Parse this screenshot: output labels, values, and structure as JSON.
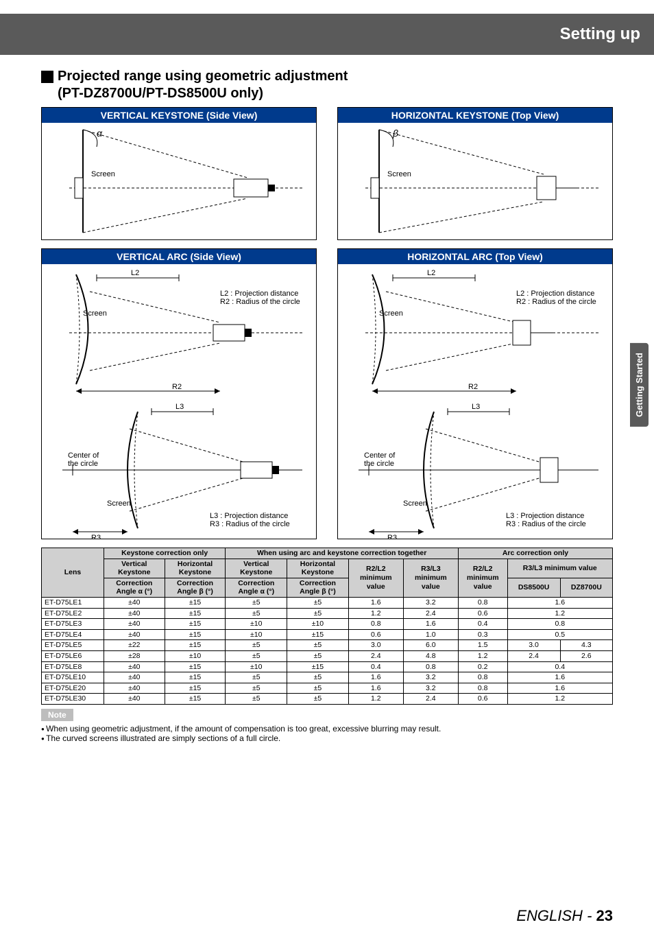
{
  "header": {
    "title": "Setting up"
  },
  "section": {
    "heading": "Projected range using geometric adjustment",
    "sub": "(PT-DZ8700U/PT-DS8500U only)"
  },
  "sidetab": "Getting Started",
  "diagrams": {
    "vk_title": "VERTICAL KEYSTONE (Side View)",
    "hk_title": "HORIZONTAL KEYSTONE (Top View)",
    "va_title": "VERTICAL ARC (Side View)",
    "ha_title": "HORIZONTAL ARC (Top View)",
    "screen": "Screen",
    "alpha": "α",
    "beta": "β",
    "L2": "L2",
    "R2": "R2",
    "L3": "L3",
    "R3": "R3",
    "center": "Center of\nthe circle",
    "l2_note": "L2 : Projection distance\nR2 : Radius of the circle",
    "l3_note": "L3 : Projection distance\nR3 : Radius of the circle"
  },
  "table": {
    "headers": {
      "lens": "Lens",
      "kco": "Keystone correction only",
      "arc_key": "When using arc and keystone correction together",
      "aco": "Arc correction only",
      "vk": "Vertical\nKeystone",
      "hk": "Horizontal\nKeystone",
      "ca": "Correction\nAngle α (°)",
      "cb": "Correction\nAngle β (°)",
      "r2l2": "R2/L2\nminimum\nvalue",
      "r3l3": "R3/L3\nminimum\nvalue",
      "r3l3min": "R3/L3 minimum value",
      "ds": "DS8500U",
      "dz": "DZ8700U"
    },
    "rows": [
      {
        "lens": "ET-D75LE1",
        "a": "±40",
        "b": "±15",
        "a2": "±5",
        "b2": "±5",
        "r2": "1.6",
        "r3": "3.2",
        "r2b": "0.8",
        "v": "1.6",
        "span": true
      },
      {
        "lens": "ET-D75LE2",
        "a": "±40",
        "b": "±15",
        "a2": "±5",
        "b2": "±5",
        "r2": "1.2",
        "r3": "2.4",
        "r2b": "0.6",
        "v": "1.2",
        "span": true
      },
      {
        "lens": "ET-D75LE3",
        "a": "±40",
        "b": "±15",
        "a2": "±10",
        "b2": "±10",
        "r2": "0.8",
        "r3": "1.6",
        "r2b": "0.4",
        "v": "0.8",
        "span": true
      },
      {
        "lens": "ET-D75LE4",
        "a": "±40",
        "b": "±15",
        "a2": "±10",
        "b2": "±15",
        "r2": "0.6",
        "r3": "1.0",
        "r2b": "0.3",
        "v": "0.5",
        "span": true
      },
      {
        "lens": "ET-D75LE5",
        "a": "±22",
        "b": "±15",
        "a2": "±5",
        "b2": "±5",
        "r2": "3.0",
        "r3": "6.0",
        "r2b": "1.5",
        "ds": "3.0",
        "dz": "4.3",
        "span": false
      },
      {
        "lens": "ET-D75LE6",
        "a": "±28",
        "b": "±10",
        "a2": "±5",
        "b2": "±5",
        "r2": "2.4",
        "r3": "4.8",
        "r2b": "1.2",
        "ds": "2.4",
        "dz": "2.6",
        "span": false
      },
      {
        "lens": "ET-D75LE8",
        "a": "±40",
        "b": "±15",
        "a2": "±10",
        "b2": "±15",
        "r2": "0.4",
        "r3": "0.8",
        "r2b": "0.2",
        "v": "0.4",
        "span": true
      },
      {
        "lens": "ET-D75LE10",
        "a": "±40",
        "b": "±15",
        "a2": "±5",
        "b2": "±5",
        "r2": "1.6",
        "r3": "3.2",
        "r2b": "0.8",
        "v": "1.6",
        "span": true
      },
      {
        "lens": "ET-D75LE20",
        "a": "±40",
        "b": "±15",
        "a2": "±5",
        "b2": "±5",
        "r2": "1.6",
        "r3": "3.2",
        "r2b": "0.8",
        "v": "1.6",
        "span": true
      },
      {
        "lens": "ET-D75LE30",
        "a": "±40",
        "b": "±15",
        "a2": "±5",
        "b2": "±5",
        "r2": "1.2",
        "r3": "2.4",
        "r2b": "0.6",
        "v": "1.2",
        "span": true
      }
    ]
  },
  "notes": {
    "label": "Note",
    "items": [
      "When using geometric adjustment, if the amount of compensation is too great, excessive blurring may result.",
      "The curved screens illustrated are simply sections of a full circle."
    ]
  },
  "footer": {
    "lang": "ENGLISH",
    "sep": " - ",
    "page": "23"
  }
}
